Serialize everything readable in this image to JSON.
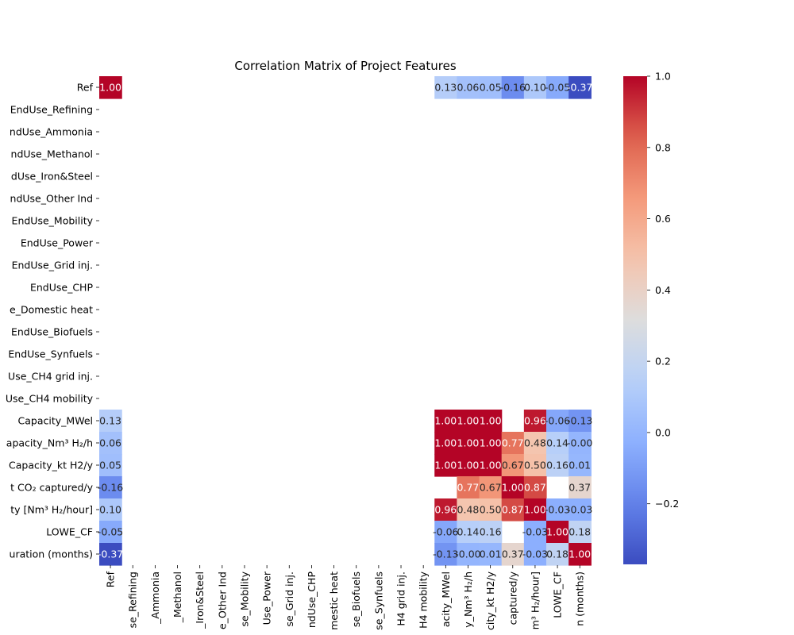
{
  "chart_data": {
    "type": "heatmap",
    "title": "Correlation Matrix of Project Features",
    "colormap": "coolwarm",
    "vmin": -0.37,
    "vmax": 1.0,
    "row_labels": [
      "Ref",
      "EndUse_Refining",
      "ndUse_Ammonia",
      "ndUse_Methanol",
      "dUse_Iron&Steel",
      "ndUse_Other Ind",
      "EndUse_Mobility",
      "EndUse_Power",
      "EndUse_Grid inj.",
      "EndUse_CHP",
      "e_Domestic heat",
      "EndUse_Biofuels",
      "EndUse_Synfuels",
      "Use_CH4 grid inj.",
      "Use_CH4 mobility",
      "Capacity_MWel",
      "apacity_Nm³ H₂/h",
      "Capacity_kt H2/y",
      "t CO₂ captured/y",
      "ty [Nm³ H₂/hour]",
      "LOWE_CF",
      "uration (months)"
    ],
    "col_labels": [
      "Ref",
      "se_Refining",
      "_Ammonia",
      "_Methanol",
      "_Iron&Steel",
      "e_Other Ind",
      "se_Mobility",
      "Use_Power",
      "se_Grid inj.",
      "ndUse_CHP",
      "mestic heat",
      "se_Biofuels",
      "se_Synfuels",
      "H4 grid inj.",
      "H4 mobility",
      "acity_MWel",
      "y_Nm³ H₂/h",
      "city_kt H2/y",
      "captured/y",
      "m³ H₂/hour]",
      "LOWE_CF",
      "n (months)"
    ],
    "matrix": [
      [
        1.0,
        null,
        null,
        null,
        null,
        null,
        null,
        null,
        null,
        null,
        null,
        null,
        null,
        null,
        null,
        0.13,
        0.06,
        0.05,
        -0.16,
        0.1,
        -0.05,
        -0.37
      ],
      [
        null,
        null,
        null,
        null,
        null,
        null,
        null,
        null,
        null,
        null,
        null,
        null,
        null,
        null,
        null,
        null,
        null,
        null,
        null,
        null,
        null,
        null
      ],
      [
        null,
        null,
        null,
        null,
        null,
        null,
        null,
        null,
        null,
        null,
        null,
        null,
        null,
        null,
        null,
        null,
        null,
        null,
        null,
        null,
        null,
        null
      ],
      [
        null,
        null,
        null,
        null,
        null,
        null,
        null,
        null,
        null,
        null,
        null,
        null,
        null,
        null,
        null,
        null,
        null,
        null,
        null,
        null,
        null,
        null
      ],
      [
        null,
        null,
        null,
        null,
        null,
        null,
        null,
        null,
        null,
        null,
        null,
        null,
        null,
        null,
        null,
        null,
        null,
        null,
        null,
        null,
        null,
        null
      ],
      [
        null,
        null,
        null,
        null,
        null,
        null,
        null,
        null,
        null,
        null,
        null,
        null,
        null,
        null,
        null,
        null,
        null,
        null,
        null,
        null,
        null,
        null
      ],
      [
        null,
        null,
        null,
        null,
        null,
        null,
        null,
        null,
        null,
        null,
        null,
        null,
        null,
        null,
        null,
        null,
        null,
        null,
        null,
        null,
        null,
        null
      ],
      [
        null,
        null,
        null,
        null,
        null,
        null,
        null,
        null,
        null,
        null,
        null,
        null,
        null,
        null,
        null,
        null,
        null,
        null,
        null,
        null,
        null,
        null
      ],
      [
        null,
        null,
        null,
        null,
        null,
        null,
        null,
        null,
        null,
        null,
        null,
        null,
        null,
        null,
        null,
        null,
        null,
        null,
        null,
        null,
        null,
        null
      ],
      [
        null,
        null,
        null,
        null,
        null,
        null,
        null,
        null,
        null,
        null,
        null,
        null,
        null,
        null,
        null,
        null,
        null,
        null,
        null,
        null,
        null,
        null
      ],
      [
        null,
        null,
        null,
        null,
        null,
        null,
        null,
        null,
        null,
        null,
        null,
        null,
        null,
        null,
        null,
        null,
        null,
        null,
        null,
        null,
        null,
        null
      ],
      [
        null,
        null,
        null,
        null,
        null,
        null,
        null,
        null,
        null,
        null,
        null,
        null,
        null,
        null,
        null,
        null,
        null,
        null,
        null,
        null,
        null,
        null
      ],
      [
        null,
        null,
        null,
        null,
        null,
        null,
        null,
        null,
        null,
        null,
        null,
        null,
        null,
        null,
        null,
        null,
        null,
        null,
        null,
        null,
        null,
        null
      ],
      [
        null,
        null,
        null,
        null,
        null,
        null,
        null,
        null,
        null,
        null,
        null,
        null,
        null,
        null,
        null,
        null,
        null,
        null,
        null,
        null,
        null,
        null
      ],
      [
        null,
        null,
        null,
        null,
        null,
        null,
        null,
        null,
        null,
        null,
        null,
        null,
        null,
        null,
        null,
        null,
        null,
        null,
        null,
        null,
        null,
        null
      ],
      [
        0.13,
        null,
        null,
        null,
        null,
        null,
        null,
        null,
        null,
        null,
        null,
        null,
        null,
        null,
        null,
        1.0,
        1.0,
        1.0,
        null,
        0.96,
        -0.06,
        -0.13
      ],
      [
        0.06,
        null,
        null,
        null,
        null,
        null,
        null,
        null,
        null,
        null,
        null,
        null,
        null,
        null,
        null,
        1.0,
        1.0,
        1.0,
        0.77,
        0.48,
        0.14,
        -0.0
      ],
      [
        0.05,
        null,
        null,
        null,
        null,
        null,
        null,
        null,
        null,
        null,
        null,
        null,
        null,
        null,
        null,
        1.0,
        1.0,
        1.0,
        0.67,
        0.5,
        0.16,
        0.01
      ],
      [
        -0.16,
        null,
        null,
        null,
        null,
        null,
        null,
        null,
        null,
        null,
        null,
        null,
        null,
        null,
        null,
        null,
        0.77,
        0.67,
        1.0,
        0.87,
        null,
        0.37
      ],
      [
        0.1,
        null,
        null,
        null,
        null,
        null,
        null,
        null,
        null,
        null,
        null,
        null,
        null,
        null,
        null,
        0.96,
        0.48,
        0.5,
        0.87,
        1.0,
        -0.03,
        -0.03
      ],
      [
        -0.05,
        null,
        null,
        null,
        null,
        null,
        null,
        null,
        null,
        null,
        null,
        null,
        null,
        null,
        null,
        -0.06,
        0.14,
        0.16,
        null,
        -0.03,
        1.0,
        0.18
      ],
      [
        -0.37,
        null,
        null,
        null,
        null,
        null,
        null,
        null,
        null,
        null,
        null,
        null,
        null,
        null,
        null,
        -0.13,
        -0.0,
        0.01,
        0.37,
        -0.03,
        0.18,
        1.0
      ]
    ],
    "colorbar_ticks": [
      "1.0",
      "0.8",
      "0.6",
      "0.4",
      "0.2",
      "0.0",
      "−0.2"
    ],
    "colorbar_tick_values": [
      1.0,
      0.8,
      0.6,
      0.4,
      0.2,
      0.0,
      -0.2
    ],
    "grid": false
  }
}
